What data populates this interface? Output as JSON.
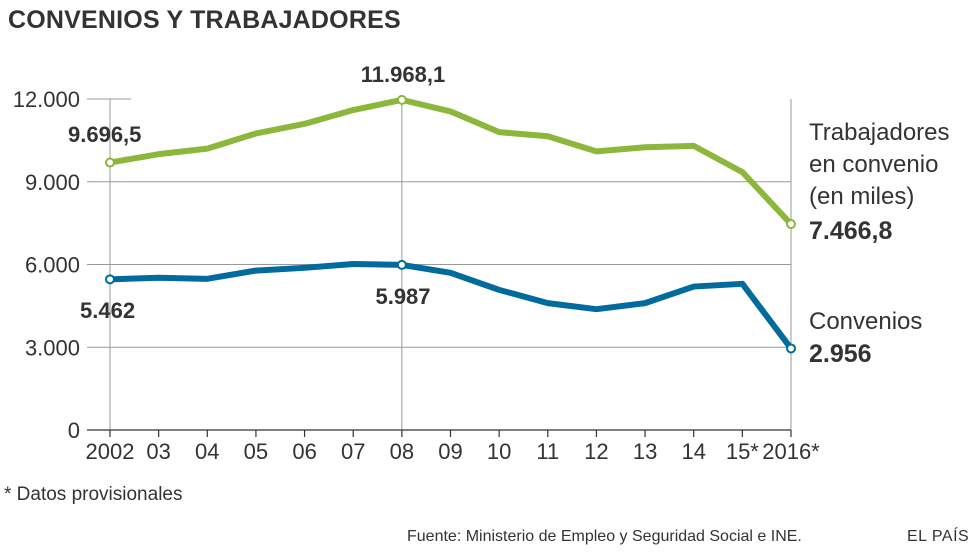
{
  "title": "CONVENIOS Y TRABAJADORES",
  "footnote": "* Datos provisionales",
  "source": "Fuente: Ministerio de Empleo y Seguridad Social e INE.",
  "brand": "EL PAÍS",
  "colors": {
    "trabajadores": "#8db63c",
    "convenios": "#006b9c",
    "grid": "#999999"
  },
  "chart_data": {
    "type": "line",
    "title": "CONVENIOS Y TRABAJADORES",
    "xlabel": "",
    "ylabel": "",
    "ylim": [
      0,
      12000
    ],
    "yticks": [
      0,
      3000,
      6000,
      9000,
      12000
    ],
    "ytick_labels": [
      "0",
      "3.000",
      "6.000",
      "9.000",
      "12.000"
    ],
    "categories": [
      "2002",
      "03",
      "04",
      "05",
      "06",
      "07",
      "08",
      "09",
      "10",
      "11",
      "12",
      "13",
      "14",
      "15*",
      "2016*"
    ],
    "series": [
      {
        "key": "trabajadores",
        "name_lines": [
          "Trabajadores",
          "en convenio",
          "(en miles)"
        ],
        "end_label": "7.466,8",
        "values": [
          9696.5,
          10000,
          10200,
          10750,
          11100,
          11600,
          11968.1,
          11550,
          10800,
          10650,
          10100,
          10250,
          10300,
          9350,
          7466.8
        ],
        "annotations": [
          {
            "index": 0,
            "label": "9.696,5"
          },
          {
            "index": 6,
            "label": "11.968,1"
          }
        ]
      },
      {
        "key": "convenios",
        "name_lines": [
          "Convenios"
        ],
        "end_label": "2.956",
        "values": [
          5462,
          5520,
          5480,
          5780,
          5880,
          6020,
          5987,
          5700,
          5080,
          4600,
          4380,
          4600,
          5200,
          5300,
          2956
        ],
        "annotations": [
          {
            "index": 0,
            "label": "5.462"
          },
          {
            "index": 6,
            "label": "5.987"
          }
        ]
      }
    ]
  }
}
